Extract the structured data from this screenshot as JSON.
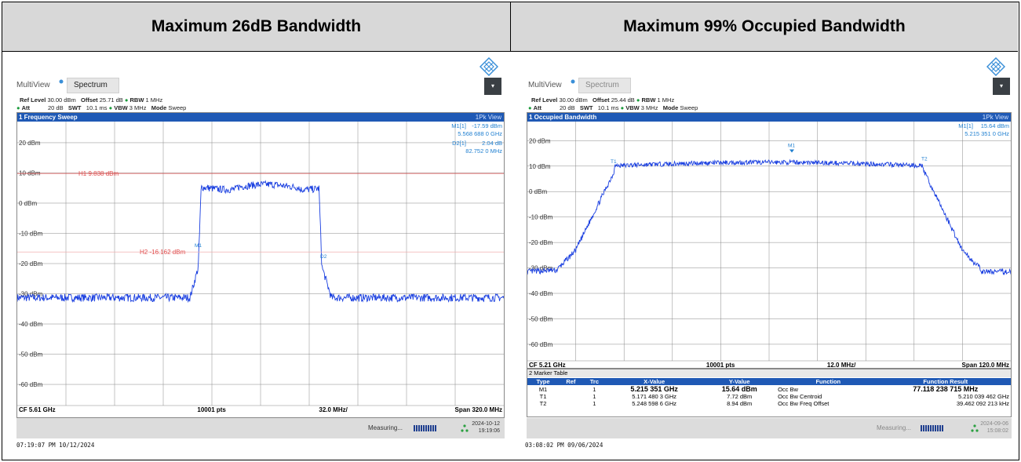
{
  "left_panel": {
    "header": "Maximum 26dB Bandwidth",
    "tab_multiview": "MultiView",
    "tab_spectrum": "Spectrum",
    "settings": {
      "ref_level_label": "Ref Level",
      "ref_level": "30.00 dBm",
      "offset_label": "Offset",
      "offset": "25.71 dB",
      "rbw_label": "RBW",
      "rbw": "1 MHz",
      "att_label": "Att",
      "att": "20 dB",
      "swt_label": "SWT",
      "swt": "10.1 ms",
      "vbw_label": "VBW",
      "vbw": "3 MHz",
      "mode_label": "Mode",
      "mode": "Sweep"
    },
    "window_title": "1 Frequency Sweep",
    "view_label": "1Pk View",
    "y_labels": [
      "20 dBm",
      "10 dBm",
      "0 dBm",
      "-10 dBm",
      "-20 dBm",
      "-30 dBm",
      "-40 dBm",
      "-50 dBm",
      "-60 dBm"
    ],
    "markers_readout": [
      {
        "name": "M1[1]",
        "value": "-17.59 dBm",
        "freq": "5.568 688 0 GHz"
      },
      {
        "name": "D2[1]",
        "value": "2.04 dB",
        "freq": "82.752 0 MHz"
      }
    ],
    "lines": {
      "h1": "H1 9.838 dBm",
      "h2": "H2 -16.162 dBm"
    },
    "marker_tags": {
      "m1": "M1",
      "d2": "D2"
    },
    "footer": {
      "cf": "CF 5.61 GHz",
      "pts": "10001 pts",
      "div": "32.0 MHz/",
      "span": "Span 320.0 MHz"
    },
    "status": {
      "measuring": "Measuring...",
      "date": "2024-10-12",
      "time": "19:19:06"
    },
    "timestamp": "07:19:07 PM 10/12/2024"
  },
  "right_panel": {
    "header": "Maximum 99% Occupied Bandwidth",
    "tab_multiview": "MultiView",
    "tab_spectrum": "Spectrum",
    "settings": {
      "ref_level_label": "Ref Level",
      "ref_level": "30.00 dBm",
      "offset_label": "Offset",
      "offset": "25.44 dB",
      "rbw_label": "RBW",
      "rbw": "1 MHz",
      "att_label": "Att",
      "att": "20 dB",
      "swt_label": "SWT",
      "swt": "10.1 ms",
      "vbw_label": "VBW",
      "vbw": "3 MHz",
      "mode_label": "Mode",
      "mode": "Sweep"
    },
    "window_title": "1 Occupied Bandwidth",
    "view_label": "1Pk View",
    "y_labels": [
      "20 dBm",
      "10 dBm",
      "0 dBm",
      "-10 dBm",
      "-20 dBm",
      "-30 dBm",
      "-40 dBm",
      "-50 dBm",
      "-60 dBm"
    ],
    "markers_readout": [
      {
        "name": "M1[1]",
        "value": "15.64 dBm",
        "freq": "5.215 351 0 GHz"
      }
    ],
    "marker_tags": {
      "m1": "M1",
      "t1": "T1",
      "t2": "T2"
    },
    "footer": {
      "cf": "CF 5.21 GHz",
      "pts": "10001 pts",
      "div": "12.0 MHz/",
      "span": "Span 120.0 MHz"
    },
    "marker_table": {
      "title": "2 Marker Table",
      "headers": [
        "Type",
        "Ref",
        "Trc",
        "X-Value",
        "Y-Value",
        "Function",
        "Function Result"
      ],
      "rows": [
        [
          "M1",
          "",
          "1",
          "5.215 351 GHz",
          "15.64 dBm",
          "Occ Bw",
          "77.118 238 715 MHz"
        ],
        [
          "T1",
          "",
          "1",
          "5.171 480 3 GHz",
          "7.72 dBm",
          "Occ Bw Centroid",
          "5.210 039 462 GHz"
        ],
        [
          "T2",
          "",
          "1",
          "5.248 598 6 GHz",
          "8.94 dBm",
          "Occ Bw Freq Offset",
          "39.462 092 213 kHz"
        ]
      ]
    },
    "status": {
      "measuring": "Measuring...",
      "date": "2024-09-06",
      "time": "15:08:02"
    },
    "timestamp": "03:08:02 PM 09/06/2024"
  },
  "colors": {
    "trace": "#1a3fe0",
    "limit_line": "#e05050",
    "title_bar": "#1f59b5",
    "readout": "#1f7fd0"
  }
}
